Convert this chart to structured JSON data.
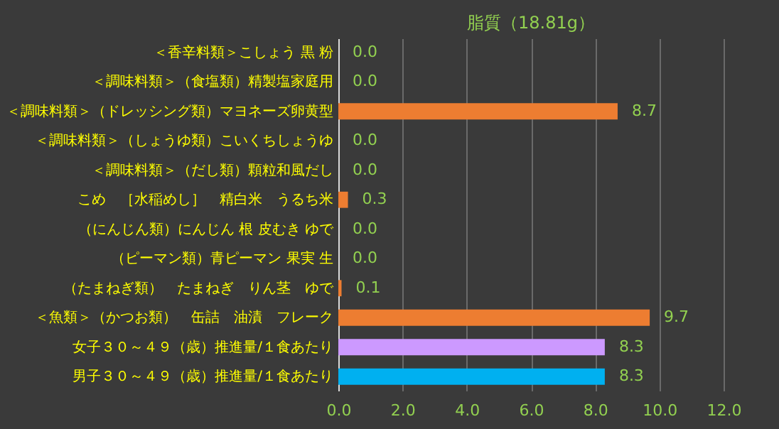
{
  "chart_data": {
    "type": "bar",
    "orientation": "horizontal",
    "title": "脂質（18.81g）",
    "categories": [
      "＜香辛料類＞こしょう 黒 粉",
      "＜調味料類＞（食塩類）精製塩家庭用",
      "＜調味料類＞（ドレッシング類）マヨネーズ卵黄型",
      "＜調味料類＞（しょうゆ類）こいくちしょうゆ",
      "＜調味料類＞（だし類）顆粒和風だし",
      "こめ　［水稲めし］　精白米　うるち米",
      "（にんじん類）にんじん 根 皮むき ゆで",
      "（ピーマン類）青ピーマン 果実 生",
      "（たまねぎ類）　たまねぎ　りん茎　ゆで",
      "＜魚類＞（かつお類）　缶詰　油漬　フレーク",
      "女子３０～４９（歳）推進量/１食あたり",
      "男子３０～４９（歳）推進量/１食あたり"
    ],
    "values": [
      0.0,
      0.0,
      8.7,
      0.0,
      0.0,
      0.3,
      0.0,
      0.0,
      0.1,
      9.7,
      8.3,
      8.3
    ],
    "colors": [
      "#ed7d31",
      "#ed7d31",
      "#ed7d31",
      "#ed7d31",
      "#ed7d31",
      "#ed7d31",
      "#ed7d31",
      "#ed7d31",
      "#ed7d31",
      "#ed7d31",
      "#cc99ff",
      "#00b0f0"
    ],
    "value_labels": [
      "0.0",
      "0.0",
      "8.7",
      "0.0",
      "0.0",
      "0.3",
      "0.0",
      "0.0",
      "0.1",
      "9.7",
      "8.3",
      "8.3"
    ],
    "xlim": [
      0,
      12
    ],
    "xticks": [
      {
        "value": 0,
        "label": "0.0"
      },
      {
        "value": 2,
        "label": "2.0"
      },
      {
        "value": 4,
        "label": "4.0"
      },
      {
        "value": 6,
        "label": "6.0"
      },
      {
        "value": 8,
        "label": "8.0"
      },
      {
        "value": 10,
        "label": "10.0"
      },
      {
        "value": 12,
        "label": "12.0"
      }
    ],
    "grid": "x",
    "legend": false
  }
}
